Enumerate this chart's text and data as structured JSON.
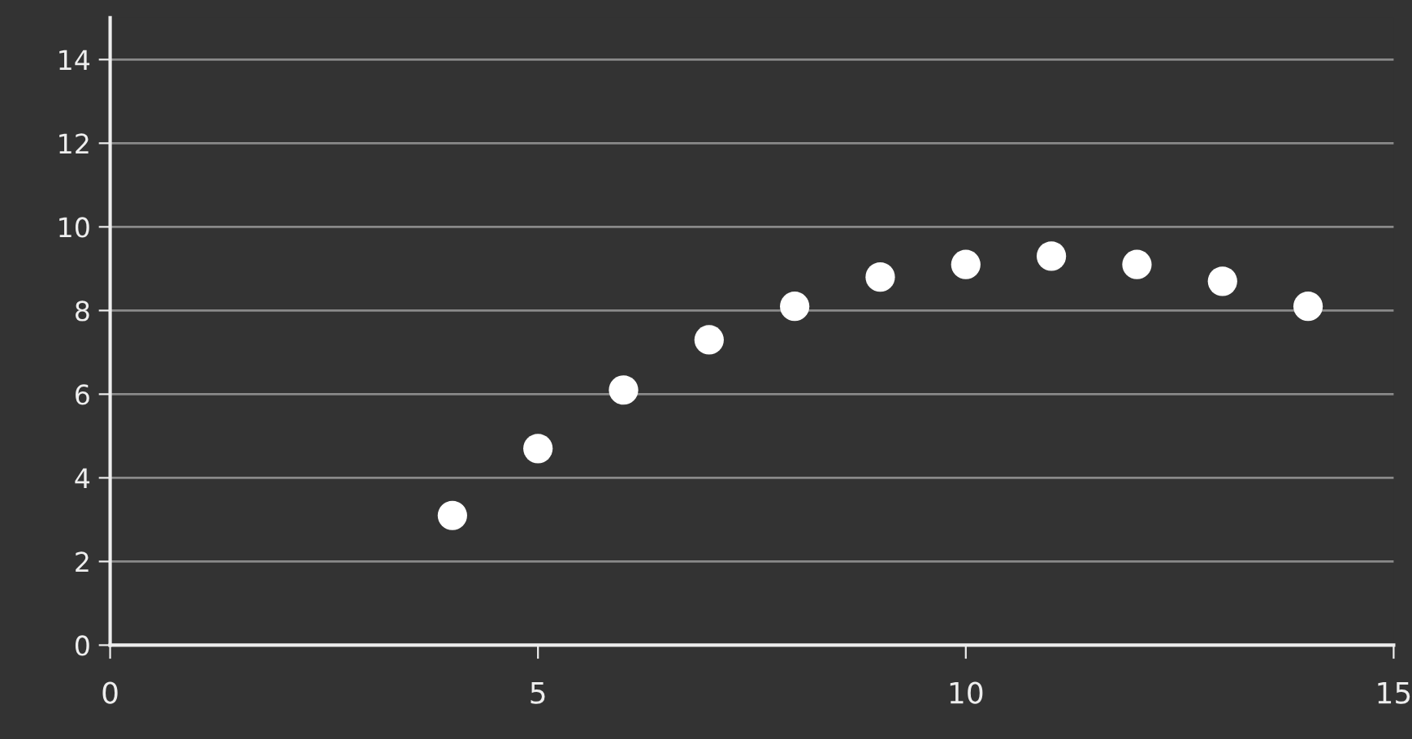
{
  "chart_data": {
    "type": "scatter",
    "x": [
      4,
      5,
      6,
      7,
      8,
      9,
      10,
      11,
      12,
      13,
      14
    ],
    "series": [
      {
        "color": "#ffffff",
        "values": [
          3.1,
          4.7,
          6.1,
          7.3,
          8.1,
          8.8,
          9.1,
          9.3,
          9.1,
          8.7,
          8.1
        ]
      }
    ],
    "xlim": [
      0,
      15
    ],
    "xticks": [
      0,
      5,
      10,
      15
    ],
    "ylim": [
      0,
      15
    ],
    "yticks": [
      0,
      2,
      4,
      6,
      8,
      10,
      12,
      14
    ],
    "grid": "y",
    "marker": "circle"
  }
}
